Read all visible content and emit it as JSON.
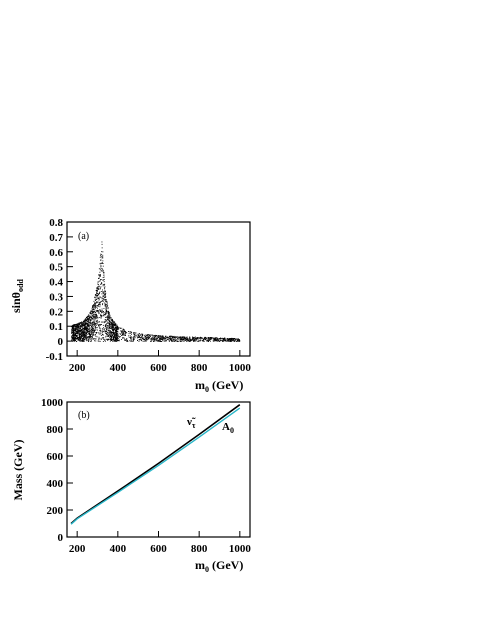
{
  "chart_data": [
    {
      "panel": "(a)",
      "type": "scatter",
      "ylabel": "sinθ_odd",
      "xlabel": "m_0 (GeV)",
      "xlim": [
        150,
        1050
      ],
      "ylim": [
        -0.1,
        0.8
      ],
      "xticks": [
        200,
        400,
        600,
        800,
        1000
      ],
      "yticks": [
        -0.1,
        0,
        0.1,
        0.2,
        0.3,
        0.4,
        0.5,
        0.6,
        0.7,
        0.8
      ],
      "series": [
        {
          "points_envelope": {
            "x": [
              170,
              200,
              230,
              260,
              280,
              300,
              310,
              320,
              330,
              340,
              360,
              400,
              450,
              500,
              600,
              700,
              800,
              900,
              1000
            ],
            "y_max": [
              0.11,
              0.12,
              0.14,
              0.19,
              0.27,
              0.4,
              0.55,
              0.7,
              0.45,
              0.3,
              0.17,
              0.1,
              0.07,
              0.055,
              0.04,
              0.035,
              0.03,
              0.025,
              0.02
            ],
            "y_min": [
              0.0,
              0.0,
              0.0,
              0.0,
              0.0,
              0.0,
              0.0,
              0.0,
              0.0,
              0.0,
              0.0,
              0.0,
              0.0,
              0.0,
              0.0,
              0.0,
              0.0,
              0.0,
              0.0
            ]
          }
        }
      ]
    },
    {
      "panel": "(b)",
      "type": "line",
      "ylabel": "Mass (GeV)",
      "xlabel": "m_0 (GeV)",
      "xlim": [
        150,
        1050
      ],
      "ylim": [
        0,
        1000
      ],
      "xticks": [
        200,
        400,
        600,
        800,
        1000
      ],
      "yticks": [
        0,
        200,
        400,
        600,
        800,
        1000
      ],
      "series": [
        {
          "name": "ν̃_τ",
          "color": "#000000",
          "x": [
            170,
            200,
            400,
            600,
            800,
            1000
          ],
          "y": [
            100,
            140,
            340,
            545,
            760,
            980
          ]
        },
        {
          "name": "A_0",
          "color": "#29b6c8",
          "x": [
            170,
            200,
            400,
            600,
            800,
            1000
          ],
          "y": [
            95,
            135,
            330,
            530,
            740,
            955
          ]
        }
      ]
    }
  ],
  "labels": {
    "a_panel": "(a)",
    "a_ylabel_main": "sinθ",
    "a_ylabel_sub": "odd",
    "a_xlabel_main": "m",
    "a_xlabel_sub": "0",
    "a_xlabel_unit": " (GeV)",
    "b_panel": "(b)",
    "b_ylabel": "Mass (GeV)",
    "b_xlabel_main": "m",
    "b_xlabel_sub": "0",
    "b_xlabel_unit": " (GeV)",
    "b_series1_main": "ν̃",
    "b_series1_sub": "τ",
    "b_series2_main": "A",
    "b_series2_sub": "0"
  }
}
